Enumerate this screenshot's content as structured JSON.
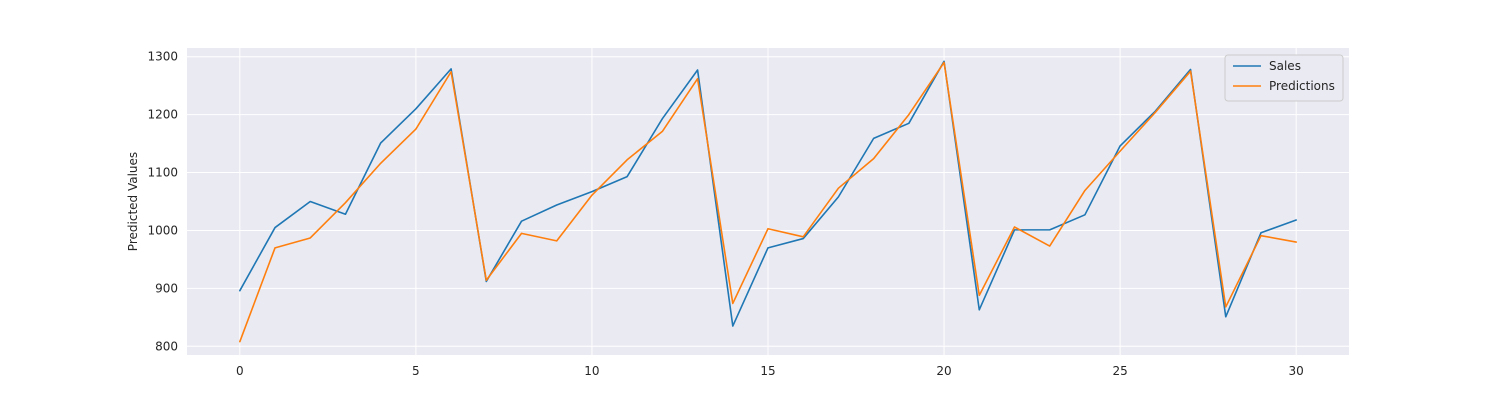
{
  "chart_data": {
    "type": "line",
    "title": "",
    "xlabel": "",
    "ylabel": "Predicted Values",
    "xlim": [
      -1.5,
      31.5
    ],
    "ylim": [
      785,
      1315
    ],
    "xticks": [
      0,
      5,
      10,
      15,
      20,
      25,
      30
    ],
    "yticks": [
      800,
      900,
      1000,
      1100,
      1200,
      1300
    ],
    "grid": true,
    "legend_position": "top-right",
    "x": [
      0,
      1,
      2,
      3,
      4,
      5,
      6,
      7,
      8,
      9,
      10,
      11,
      12,
      13,
      14,
      15,
      16,
      17,
      18,
      19,
      20,
      21,
      22,
      23,
      24,
      25,
      26,
      27,
      28,
      29,
      30
    ],
    "series": [
      {
        "name": "Sales",
        "color": "#1f77b4",
        "values": [
          896,
          1005,
          1050,
          1028,
          1151,
          1210,
          1279,
          912,
          1016,
          1044,
          1067,
          1093,
          1193,
          1277,
          835,
          970,
          986,
          1058,
          1159,
          1185,
          1292,
          863,
          1001,
          1001,
          1027,
          1146,
          1206,
          1278,
          851,
          996,
          1018
        ]
      },
      {
        "name": "Predictions",
        "color": "#ff7f0e",
        "values": [
          808,
          970,
          987,
          1048,
          1116,
          1175,
          1274,
          914,
          995,
          982,
          1061,
          1122,
          1171,
          1262,
          874,
          1003,
          989,
          1073,
          1124,
          1200,
          1290,
          888,
          1006,
          973,
          1069,
          1137,
          1204,
          1275,
          868,
          991,
          980
        ]
      }
    ]
  },
  "style": {
    "plot_background": "#eaeaf2",
    "grid_color": "#ffffff",
    "legend_background": "#eaeaf2",
    "legend_border": "#cccccc"
  }
}
